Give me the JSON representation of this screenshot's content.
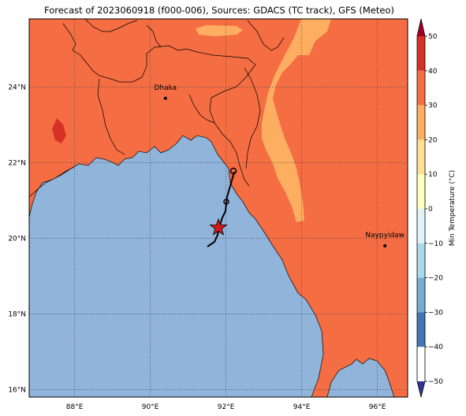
{
  "title": "Forecast of 2023060918 (f000-006), Sources: GDACS (TC track), GFS (Meteo)",
  "map": {
    "lon_ticks": [
      "88°E",
      "90°E",
      "92°E",
      "94°E",
      "96°E"
    ],
    "lat_ticks": [
      "24°N",
      "22°N",
      "20°N",
      "18°N",
      "16°N"
    ],
    "cities": [
      {
        "name": "Dhaka",
        "lon": 90.4,
        "lat": 23.7
      },
      {
        "name": "Naypyidaw",
        "lon": 96.2,
        "lat": 19.8
      }
    ],
    "ocean_color": "#91b4da",
    "land_color": "#f46d43",
    "warm_band_color": "#fdae61",
    "hot_spot_color": "#d73027",
    "storm_marker_color": "#d7191c"
  },
  "colorbar": {
    "label": "Min Temperature (°C)",
    "ticks": [
      "50",
      "40",
      "30",
      "20",
      "10",
      "0",
      "−10",
      "−20",
      "−30",
      "−40",
      "−50"
    ],
    "colors": [
      "#a50026",
      "#d73027",
      "#f46d43",
      "#fdae61",
      "#fee090",
      "#ffffbf",
      "#e0f3f8",
      "#abd9e9",
      "#74add1",
      "#4575b4",
      "#313695"
    ]
  }
}
